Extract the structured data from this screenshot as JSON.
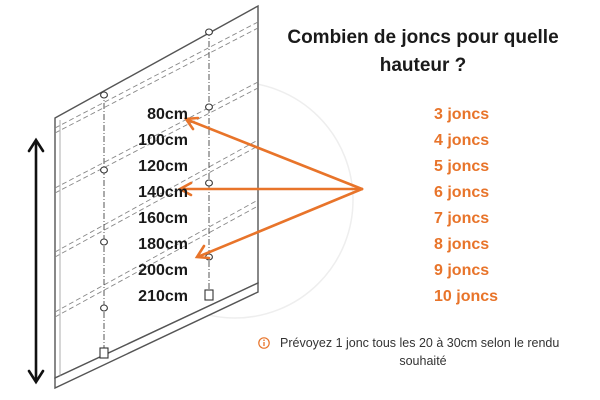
{
  "title_line1": "Combien de joncs pour quelle",
  "title_line2": "hauteur ?",
  "rows": [
    {
      "height": "80cm",
      "rods": "3 joncs"
    },
    {
      "height": "100cm",
      "rods": "4 joncs"
    },
    {
      "height": "120cm",
      "rods": "5 joncs"
    },
    {
      "height": "140cm",
      "rods": "6 joncs"
    },
    {
      "height": "160cm",
      "rods": "7 joncs"
    },
    {
      "height": "180cm",
      "rods": "8 joncs"
    },
    {
      "height": "200cm",
      "rods": "9 joncs"
    },
    {
      "height": "210cm",
      "rods": "10 joncs"
    }
  ],
  "note_line1": "Prévoyez 1 jonc tous les 20 à 30cm selon le rendu",
  "note_line2": "souhaité",
  "colors": {
    "accent": "#e8742a",
    "text": "#1a1a1a",
    "line": "#666666"
  },
  "icons": [
    "info-icon",
    "height-arrow-icon"
  ]
}
